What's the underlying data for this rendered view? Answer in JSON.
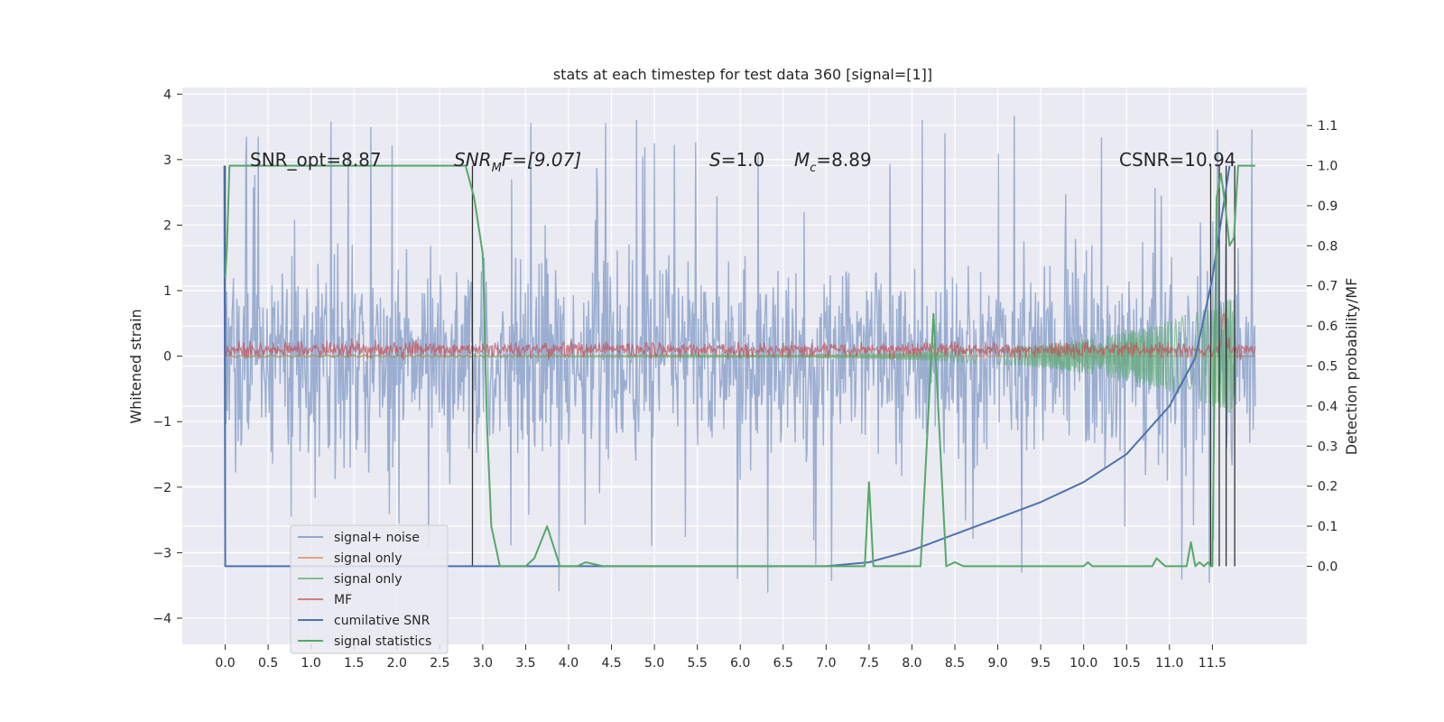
{
  "chart_data": {
    "type": "line",
    "title": "stats at each timestep for test data 360 [signal=[1]]",
    "ylabel": "Whitened strain",
    "y2label": "Detection probability/MF",
    "xlim": [
      -0.5,
      12.6
    ],
    "ylim": [
      -4.4,
      4.1
    ],
    "y2lim": [
      -0.195,
      1.195
    ],
    "x_ticks": [
      0.0,
      0.5,
      1.0,
      1.5,
      2.0,
      2.5,
      3.0,
      3.5,
      4.0,
      4.5,
      5.0,
      5.5,
      6.0,
      6.5,
      7.0,
      7.5,
      8.0,
      8.5,
      9.0,
      9.5,
      10.0,
      10.5,
      11.0,
      11.5
    ],
    "x_tick_labels": [
      "0.0",
      "0.5",
      "1.0",
      "1.5",
      "2.0",
      "2.5",
      "3.0",
      "3.5",
      "4.0",
      "4.5",
      "5.0",
      "5.5",
      "6.0",
      "6.5",
      "7.0",
      "7.5",
      "8.0",
      "8.5",
      "9.0",
      "9.5",
      "10.0",
      "10.5",
      "11.0",
      "11.5"
    ],
    "y_ticks": [
      -4,
      -3,
      -2,
      -1,
      0,
      1,
      2,
      3,
      4
    ],
    "y_tick_labels": [
      "−4",
      "−3",
      "−2",
      "−1",
      "0",
      "1",
      "2",
      "3",
      "4"
    ],
    "y2_ticks": [
      0.0,
      0.1,
      0.2,
      0.3,
      0.4,
      0.5,
      0.6,
      0.7,
      0.8,
      0.9,
      1.0,
      1.1
    ],
    "y2_tick_labels": [
      "0.0",
      "0.1",
      "0.2",
      "0.3",
      "0.4",
      "0.5",
      "0.6",
      "0.7",
      "0.8",
      "0.9",
      "1.0",
      "1.1"
    ],
    "grid": true,
    "legend_position": "lower-left",
    "annotations": [
      "SNR_opt=8.87",
      "CSNR=10.94"
    ],
    "annotation_snrmf": {
      "base": "SNR",
      "sub": "M",
      "rest": "F=[9.07]"
    },
    "annotation_s": {
      "var": "S",
      "rest": "=1.0"
    },
    "annotation_mc": {
      "base": "M",
      "sub": "c",
      "rest": "=8.89"
    },
    "colors": {
      "signal_noise": "#4c72b0",
      "signal_only": "#dd8452",
      "signal_only_2": "#55a868",
      "mf": "#c44e52",
      "csnr": "#4c72b0",
      "stats": "#55a868",
      "vlines": "#333333"
    },
    "series": [
      {
        "name": "signal+ noise",
        "kind": "noise",
        "x_range": [
          0.0,
          12.0
        ],
        "mean": 0.0,
        "band": [
          -1.5,
          1.6
        ],
        "extremes": [
          -4.1,
          3.7
        ]
      },
      {
        "name": "signal only",
        "kind": "flat",
        "y": 0.0
      },
      {
        "name": "signal only",
        "kind": "chirp",
        "amplitude_start": 0.02,
        "amplitude_end": 0.9
      },
      {
        "name": "MF",
        "kind": "mf_noise",
        "mean": 0.1,
        "band": [
          0.0,
          0.35
        ]
      },
      {
        "name": "cumilative SNR",
        "axis": "right",
        "x": [
          -0.01,
          0.0,
          3.0,
          6.0,
          7.0,
          7.5,
          8.0,
          8.5,
          9.0,
          9.5,
          10.0,
          10.5,
          11.0,
          11.3,
          11.5,
          11.7
        ],
        "y": [
          1.0,
          0.0,
          0.0,
          0.0,
          0.0,
          0.01,
          0.04,
          0.08,
          0.12,
          0.16,
          0.21,
          0.28,
          0.4,
          0.52,
          0.72,
          1.0
        ]
      },
      {
        "name": "signal statistics",
        "axis": "right",
        "x": [
          0.0,
          0.02,
          0.05,
          0.1,
          2.8,
          2.9,
          3.0,
          3.05,
          3.1,
          3.2,
          3.5,
          3.6,
          3.75,
          3.9,
          4.1,
          4.2,
          4.4,
          7.45,
          7.5,
          7.55,
          7.7,
          7.9,
          8.0,
          8.1,
          8.25,
          8.4,
          8.5,
          8.6,
          8.7,
          9.5,
          10.0,
          10.05,
          10.1,
          10.5,
          10.8,
          10.85,
          10.95,
          11.05,
          11.2,
          11.25,
          11.3,
          11.35,
          11.4,
          11.45,
          11.48,
          11.5,
          11.55,
          11.6,
          11.65,
          11.7,
          11.75,
          11.8,
          12.0
        ],
        "y": [
          0.72,
          0.8,
          1.0,
          1.0,
          1.0,
          0.92,
          0.78,
          0.35,
          0.1,
          0.0,
          0.0,
          0.02,
          0.1,
          0.0,
          0.0,
          0.01,
          0.0,
          0.0,
          0.21,
          0.0,
          0.0,
          0.0,
          0.0,
          0.0,
          0.63,
          0.0,
          0.01,
          0.0,
          0.0,
          0.0,
          0.0,
          0.01,
          0.0,
          0.0,
          0.0,
          0.02,
          0.0,
          0.0,
          0.0,
          0.06,
          0.0,
          0.01,
          0.0,
          0.01,
          0.0,
          0.0,
          0.92,
          0.98,
          0.9,
          0.8,
          0.82,
          1.0,
          1.0
        ]
      }
    ],
    "vlines": [
      0.0,
      2.88,
      11.48,
      11.58,
      11.66,
      11.76
    ]
  }
}
